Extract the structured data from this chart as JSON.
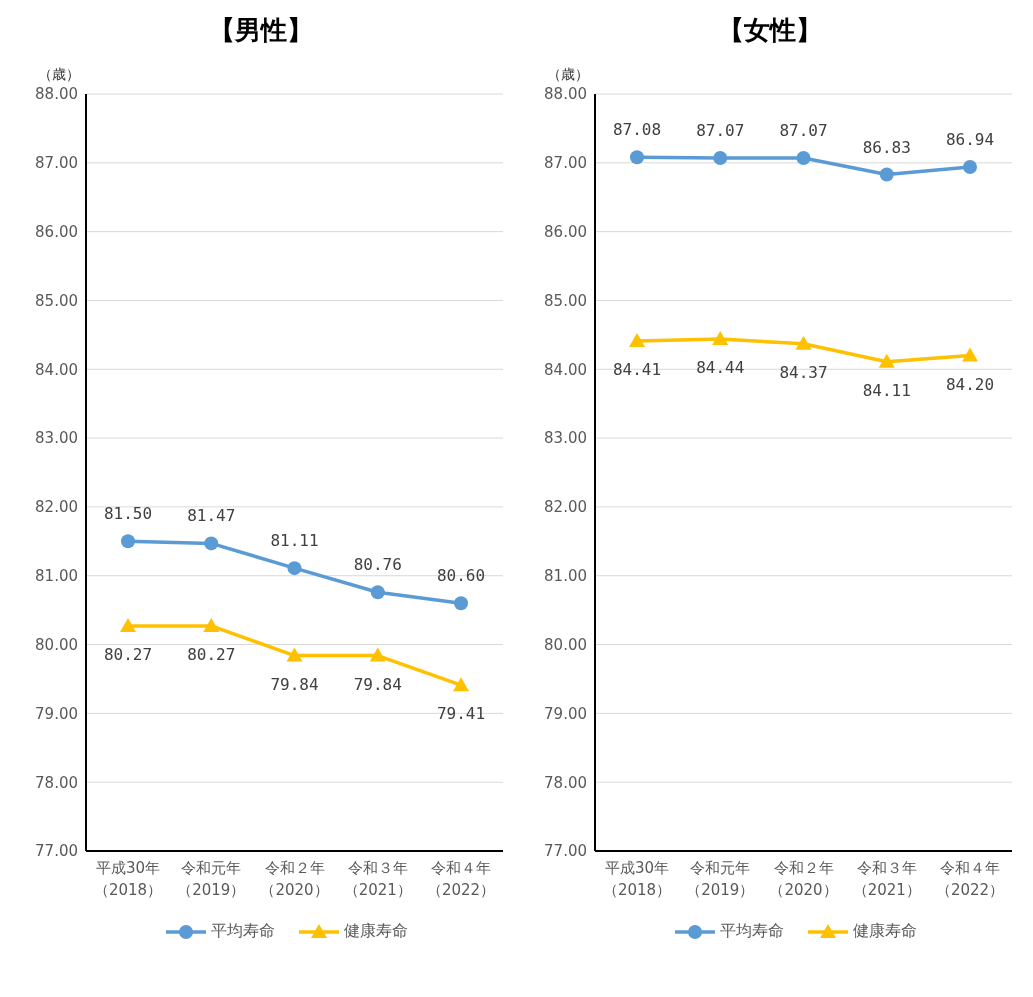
{
  "chart_data": [
    {
      "type": "line",
      "title": "【男性】",
      "ylabel": "（歳）",
      "categories": [
        "平成30年（2018）",
        "令和元年（2019）",
        "令和２年（2020）",
        "令和３年（2021）",
        "令和４年（2022）"
      ],
      "series": [
        {
          "name": "平均寿命",
          "color": "#5b9bd5",
          "marker": "circle",
          "values": [
            81.5,
            81.47,
            81.11,
            80.76,
            80.6
          ],
          "value_labels": [
            "81.50",
            "81.47",
            "81.11",
            "80.76",
            "80.60"
          ]
        },
        {
          "name": "健康寿命",
          "color": "#ffc000",
          "marker": "triangle",
          "values": [
            80.27,
            80.27,
            79.84,
            79.84,
            79.41
          ],
          "value_labels": [
            "80.27",
            "80.27",
            "79.84",
            "79.84",
            "79.41"
          ]
        }
      ],
      "ylim": [
        77,
        88
      ],
      "yticks": [
        {
          "value": 77,
          "label": "77.00"
        },
        {
          "value": 78,
          "label": "78.00"
        },
        {
          "value": 79,
          "label": "79.00"
        },
        {
          "value": 80,
          "label": "80.00"
        },
        {
          "value": 81,
          "label": "81.00"
        },
        {
          "value": 82,
          "label": "82.00"
        },
        {
          "value": 83,
          "label": "83.00"
        },
        {
          "value": 84,
          "label": "84.00"
        },
        {
          "value": 85,
          "label": "85.00"
        },
        {
          "value": 86,
          "label": "86.00"
        },
        {
          "value": 87,
          "label": "87.00"
        },
        {
          "value": 88,
          "label": "88.00"
        }
      ],
      "grid": "y",
      "legend": "bottom"
    },
    {
      "type": "line",
      "title": "【女性】",
      "ylabel": "（歳）",
      "categories": [
        "平成30年（2018）",
        "令和元年（2019）",
        "令和２年（2020）",
        "令和３年（2021）",
        "令和４年（2022）"
      ],
      "series": [
        {
          "name": "平均寿命",
          "color": "#5b9bd5",
          "marker": "circle",
          "values": [
            87.08,
            87.07,
            87.07,
            86.83,
            86.94
          ],
          "value_labels": [
            "87.08",
            "87.07",
            "87.07",
            "86.83",
            "86.94"
          ]
        },
        {
          "name": "健康寿命",
          "color": "#ffc000",
          "marker": "triangle",
          "values": [
            84.41,
            84.44,
            84.37,
            84.11,
            84.2
          ],
          "value_labels": [
            "84.41",
            "84.44",
            "84.37",
            "84.11",
            "84.20"
          ]
        }
      ],
      "ylim": [
        77,
        88
      ],
      "yticks": [
        {
          "value": 77,
          "label": "77.00"
        },
        {
          "value": 78,
          "label": "78.00"
        },
        {
          "value": 79,
          "label": "79.00"
        },
        {
          "value": 80,
          "label": "80.00"
        },
        {
          "value": 81,
          "label": "81.00"
        },
        {
          "value": 82,
          "label": "82.00"
        },
        {
          "value": 83,
          "label": "83.00"
        },
        {
          "value": 84,
          "label": "84.00"
        },
        {
          "value": 85,
          "label": "85.00"
        },
        {
          "value": 86,
          "label": "86.00"
        },
        {
          "value": 87,
          "label": "87.00"
        },
        {
          "value": 88,
          "label": "88.00"
        }
      ],
      "grid": "y",
      "legend": "bottom"
    }
  ]
}
